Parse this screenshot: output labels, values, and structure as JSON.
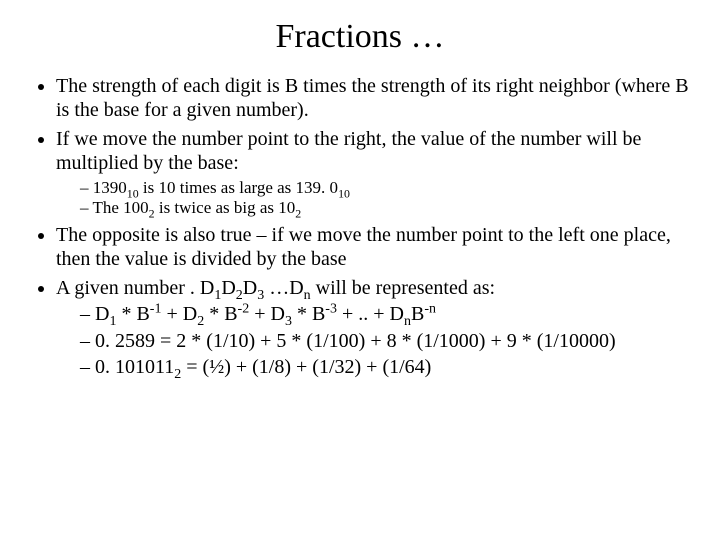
{
  "title": "Fractions …",
  "bullets": {
    "b1": "The strength of each digit is B times the strength of its right neighbor (where B is the base for a given number).",
    "b2": "If we move the number point to the right, the value of the number will be multiplied by the base:",
    "b2s1_a": "1390",
    "b2s1_sub1": "10",
    "b2s1_b": " is 10 times as large as 139. 0",
    "b2s1_sub2": "10",
    "b2s2_a": "The 100",
    "b2s2_sub1": "2",
    "b2s2_b": " is twice as big as 10",
    "b2s2_sub2": "2",
    "b3": "The opposite is also true – if we move the number point to the left one place, then the value is divided by the base",
    "b4_a": "A given number . D",
    "b4_s1": "1",
    "b4_b": "D",
    "b4_s2": "2",
    "b4_c": "D",
    "b4_s3": "3",
    "b4_d": " …D",
    "b4_s4": "n",
    "b4_e": " will be represented as:",
    "f1_a": "D",
    "f1_s1": "1",
    "f1_b": " * B",
    "f1_e1": "-1",
    "f1_c": " + D",
    "f1_s2": "2",
    "f1_d": " * B",
    "f1_e2": "-2",
    "f1_f": " + D",
    "f1_s3": "3",
    "f1_g": " * B",
    "f1_e3": "-3",
    "f1_h": " + .. + D",
    "f1_s4": "n",
    "f1_i": "B",
    "f1_e4": "-n",
    "f2": "0. 2589 = 2 * (1/10) + 5 * (1/100) + 8 * (1/1000) + 9 * (1/10000)",
    "f3_a": "0. 101011",
    "f3_sub": "2",
    "f3_b": " = (½) + (1/8) + (1/32) + (1/64)"
  },
  "style": {
    "background_color": "#ffffff",
    "text_color": "#000000",
    "font_family": "Times New Roman",
    "title_fontsize": 34,
    "body_fontsize": 20,
    "sub_fontsize": 17
  }
}
